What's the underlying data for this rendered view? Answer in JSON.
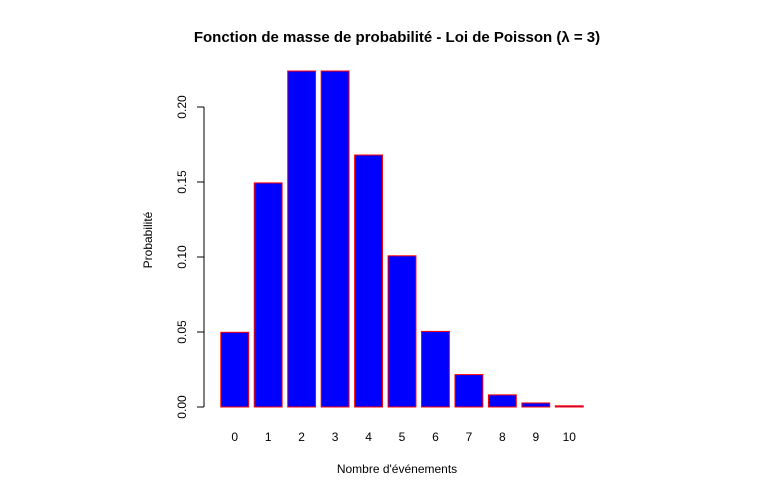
{
  "chart_data": {
    "type": "bar",
    "title": "Fonction de masse de probabilité - Loi de Poisson (λ = 3)",
    "xlabel": "Nombre d'événements",
    "ylabel": "Probabilité",
    "categories": [
      "0",
      "1",
      "2",
      "3",
      "4",
      "5",
      "6",
      "7",
      "8",
      "9",
      "10"
    ],
    "values": [
      0.0498,
      0.1494,
      0.224,
      0.224,
      0.168,
      0.1008,
      0.0504,
      0.0216,
      0.0081,
      0.0027,
      0.0008
    ],
    "ylim": [
      0,
      0.224
    ],
    "yticks": [
      0.0,
      0.05,
      0.1,
      0.15,
      0.2
    ],
    "ytick_labels": [
      "0.00",
      "0.05",
      "0.10",
      "0.15",
      "0.20"
    ],
    "grid": false,
    "legend": "none",
    "colors": {
      "bar_fill": "#0000ff",
      "bar_border": "#ff0000"
    }
  }
}
